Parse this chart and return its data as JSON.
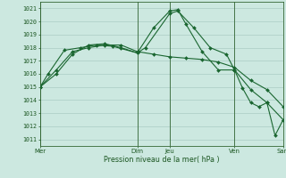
{
  "xlabel": "Pression niveau de la mer( hPa )",
  "background_color": "#cce8e0",
  "grid_color": "#aaccc4",
  "line_color": "#1a6630",
  "ylim": [
    1010.5,
    1021.5
  ],
  "yticks": [
    1011,
    1012,
    1013,
    1014,
    1015,
    1016,
    1017,
    1018,
    1019,
    1020,
    1021
  ],
  "x_day_labels": [
    "Mer",
    "Dim",
    "Jeu",
    "Ven",
    "Sam"
  ],
  "x_day_positions": [
    0,
    12,
    16,
    24,
    30
  ],
  "vline_color": "#336633",
  "xlim": [
    0,
    30
  ],
  "series1_x": [
    0,
    1,
    3,
    5,
    7,
    9,
    12,
    13,
    16,
    17,
    19,
    21,
    23,
    24,
    26,
    28,
    30
  ],
  "series1_y": [
    1015.0,
    1016.0,
    1017.8,
    1018.0,
    1018.2,
    1018.1,
    1017.6,
    1018.0,
    1020.6,
    1020.8,
    1019.5,
    1018.0,
    1017.5,
    1016.3,
    1014.8,
    1013.8,
    1012.5
  ],
  "series2_x": [
    0,
    2,
    4,
    6,
    8,
    10,
    12,
    14,
    16,
    18,
    20,
    22,
    24,
    26,
    28,
    30
  ],
  "series2_y": [
    1015.0,
    1016.3,
    1017.7,
    1018.0,
    1018.2,
    1018.2,
    1017.7,
    1017.5,
    1017.3,
    1017.2,
    1017.1,
    1016.9,
    1016.5,
    1015.5,
    1014.8,
    1013.5
  ],
  "series3_x": [
    0,
    2,
    4,
    6,
    8,
    10,
    12,
    14,
    16,
    17,
    18,
    20,
    22,
    24,
    25,
    26,
    27,
    28,
    29,
    30
  ],
  "series3_y": [
    1015.0,
    1016.0,
    1017.5,
    1018.2,
    1018.3,
    1018.0,
    1017.6,
    1019.5,
    1020.8,
    1020.9,
    1019.8,
    1017.7,
    1016.3,
    1016.3,
    1014.9,
    1013.8,
    1013.5,
    1013.8,
    1011.3,
    1012.5
  ]
}
